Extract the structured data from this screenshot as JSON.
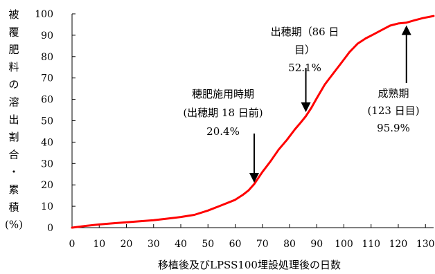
{
  "chart_data": {
    "type": "line",
    "xlabel": "移植後及びLPSS100埋設処理後の日数",
    "ylabel": "被覆肥料の溶出割合・累積(%)",
    "ylabel_chars": [
      "被",
      "覆",
      "肥",
      "料",
      "の",
      "溶",
      "出",
      "割",
      "合",
      "・",
      "累",
      "積",
      "(%)"
    ],
    "xlim": [
      0,
      133
    ],
    "ylim": [
      0,
      100
    ],
    "x_ticks": [
      0,
      10,
      20,
      30,
      40,
      50,
      60,
      70,
      80,
      90,
      100,
      110,
      120,
      130
    ],
    "y_ticks": [
      0,
      10,
      20,
      30,
      40,
      50,
      60,
      70,
      80,
      90,
      100
    ],
    "grid": false,
    "series_color": "#ff0000",
    "series": [
      {
        "x": [
          0,
          5,
          10,
          15,
          20,
          25,
          30,
          35,
          40,
          45,
          50,
          55,
          60,
          63,
          65,
          67,
          70,
          73,
          76,
          79,
          82,
          84,
          86,
          88,
          90,
          93,
          96,
          99,
          102,
          105,
          108,
          111,
          114,
          117,
          120,
          123,
          126,
          129,
          133
        ],
        "values": [
          0,
          0.8,
          1.5,
          2.0,
          2.5,
          3.0,
          3.5,
          4.2,
          5.0,
          6.0,
          8.0,
          10.5,
          13.0,
          15.5,
          17.5,
          20.4,
          26.0,
          31.0,
          36.5,
          41.0,
          46.0,
          49.0,
          52.1,
          56.0,
          60.5,
          67.0,
          72.0,
          77.0,
          82.0,
          86.0,
          88.5,
          90.5,
          92.5,
          94.5,
          95.5,
          95.9,
          97.0,
          98.0,
          99.0
        ]
      }
    ],
    "annotations": [
      {
        "lines": [
          "穂肥施用時期",
          "(出穂期 18 日前)",
          "20.4%"
        ],
        "x": 67,
        "y": 20.4
      },
      {
        "lines": [
          "出穂期（86 日",
          "目）",
          "52.1%"
        ],
        "x": 86,
        "y": 52.1
      },
      {
        "lines": [
          "成熟期",
          "(123 日目)",
          "95.9%"
        ],
        "x": 123,
        "y": 95.9
      }
    ]
  }
}
